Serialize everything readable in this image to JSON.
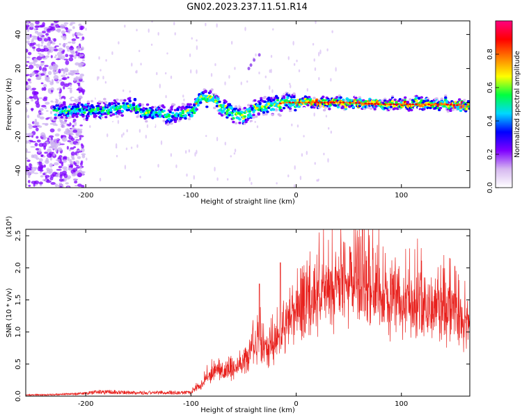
{
  "title": "GN02.2023.237.11.51.R14",
  "colors": {
    "snr_line": "#e8201c",
    "frame": "#000000"
  },
  "chart_data": [
    {
      "type": "heatmap",
      "xlabel": "Height of straight line (km)",
      "ylabel": "Frequency (Hz)",
      "xlim": [
        -257,
        165
      ],
      "ylim": [
        -50,
        48
      ],
      "xticks": [
        -200,
        -100,
        0,
        100
      ],
      "yticks": [
        -40,
        -20,
        0,
        20,
        40
      ],
      "xtick_labels": [
        "-200",
        "-100",
        "0",
        "100"
      ],
      "ytick_labels": [
        "-40",
        "-20",
        "0",
        "20",
        "40"
      ],
      "colorbar": {
        "label": "Normalized spectral amplitude",
        "range": [
          0,
          1
        ],
        "ticks": [
          0.0,
          0.2,
          0.4,
          0.6,
          0.8
        ],
        "tick_labels": [
          "0.0",
          "0.2",
          "0.4",
          "0.6",
          "0.8"
        ],
        "colormap": [
          "#ffffff",
          "#d6b8f0",
          "#7f00ff",
          "#0000ff",
          "#00d8ff",
          "#00ff40",
          "#ffff00",
          "#ff8000",
          "#ff0000",
          "#ff0080"
        ]
      },
      "ridge": {
        "x": [
          -230,
          -200,
          -180,
          -160,
          -140,
          -120,
          -100,
          -90,
          -80,
          -70,
          -60,
          -50,
          -40,
          -30,
          -20,
          -10,
          0,
          20,
          50,
          80,
          110,
          140,
          165
        ],
        "y": [
          -4,
          -5,
          -4,
          -2,
          -6,
          -7,
          -5,
          3,
          2,
          -3,
          -6,
          -8,
          -4,
          -2,
          -1,
          0,
          0,
          0,
          0,
          -1,
          -1,
          -1,
          -2
        ]
      }
    },
    {
      "type": "line",
      "xlabel": "Height of straight line (km)",
      "ylabel": "SNR (10 * v/v)",
      "ylabel_scale": "(x10⁴)",
      "xlim": [
        -257,
        165
      ],
      "ylim": [
        0,
        2.6
      ],
      "xticks": [
        -200,
        -100,
        0,
        100
      ],
      "yticks": [
        0.0,
        0.5,
        1.0,
        1.5,
        2.0,
        2.5
      ],
      "xtick_labels": [
        "-200",
        "-100",
        "0",
        "100"
      ],
      "ytick_labels": [
        "0.0",
        "0.5",
        "1.0",
        "1.5",
        "2.0",
        "2.5"
      ],
      "series": [
        {
          "color": "#e8201c",
          "envelope": {
            "x": [
              -257,
              -230,
              -200,
              -190,
              -150,
              -120,
              -100,
              -90,
              -80,
              -60,
              -50,
              -40,
              -35,
              -30,
              -20,
              -10,
              0,
              20,
              40,
              60,
              80,
              100,
              130,
              150,
              165
            ],
            "y": [
              0.02,
              0.03,
              0.05,
              0.08,
              0.06,
              0.07,
              0.06,
              0.18,
              0.35,
              0.42,
              0.55,
              0.7,
              0.9,
              0.7,
              0.85,
              1.1,
              1.25,
              1.55,
              1.7,
              1.75,
              1.6,
              1.45,
              1.35,
              1.25,
              1.15
            ]
          },
          "peaks": [
            {
              "x": -35,
              "y": 1.75
            },
            {
              "x": -15,
              "y": 2.08
            },
            {
              "x": 63,
              "y": 2.6
            }
          ]
        }
      ]
    }
  ]
}
